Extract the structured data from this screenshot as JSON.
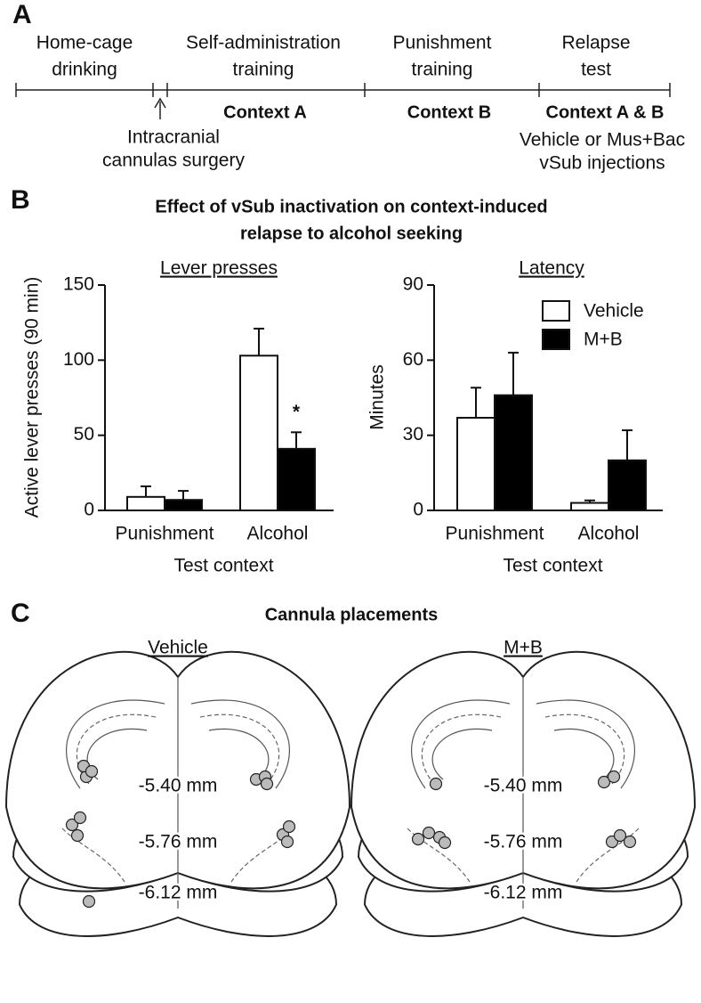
{
  "panel_labels": [
    "A",
    "B",
    "C"
  ],
  "timeline": {
    "stages": [
      [
        "Home-cage",
        "drinking"
      ],
      [
        "Self-administration",
        "training"
      ],
      [
        "Punishment",
        "training"
      ],
      [
        "Relapse",
        "test"
      ]
    ],
    "contexts": [
      "Context A",
      "Context B",
      "Context A & B"
    ],
    "surgery_note": [
      "Intracranial",
      "cannulas surgery"
    ],
    "injection_note": [
      "Vehicle or Mus+Bac",
      "vSub injections"
    ]
  },
  "figure_title": [
    "Effect of vSub inactivation on context-induced",
    "relapse to alcohol seeking"
  ],
  "chart_data": [
    {
      "type": "bar",
      "title": "Lever presses",
      "y_label": "Active lever presses (90 min)",
      "x_label": "Test context",
      "categories": [
        "Punishment",
        "Alcohol"
      ],
      "series": [
        {
          "name": "Vehicle",
          "color": "#ffffff",
          "values": [
            9,
            103
          ],
          "errors": [
            7,
            18
          ]
        },
        {
          "name": "M+B",
          "color": "#000000",
          "values": [
            7,
            41
          ],
          "errors": [
            6,
            11
          ]
        }
      ],
      "ylim": [
        0,
        150
      ],
      "yticks": [
        0,
        50,
        100,
        150
      ],
      "annotations": [
        "*"
      ],
      "legend": false
    },
    {
      "type": "bar",
      "title": "Latency",
      "y_label": "Minutes",
      "x_label": "Test context",
      "categories": [
        "Punishment",
        "Alcohol"
      ],
      "series": [
        {
          "name": "Vehicle",
          "color": "#ffffff",
          "values": [
            37,
            3
          ],
          "errors": [
            12,
            1
          ]
        },
        {
          "name": "M+B",
          "color": "#000000",
          "values": [
            46,
            20
          ],
          "errors": [
            17,
            12
          ]
        }
      ],
      "ylim": [
        0,
        90
      ],
      "yticks": [
        0,
        30,
        60,
        90
      ],
      "legend": true
    }
  ],
  "placements": {
    "title": "Cannula placements",
    "groups": [
      "Vehicle",
      "M+B"
    ],
    "levels": [
      "-5.40 mm",
      "-5.76 mm",
      "-6.12 mm"
    ]
  }
}
